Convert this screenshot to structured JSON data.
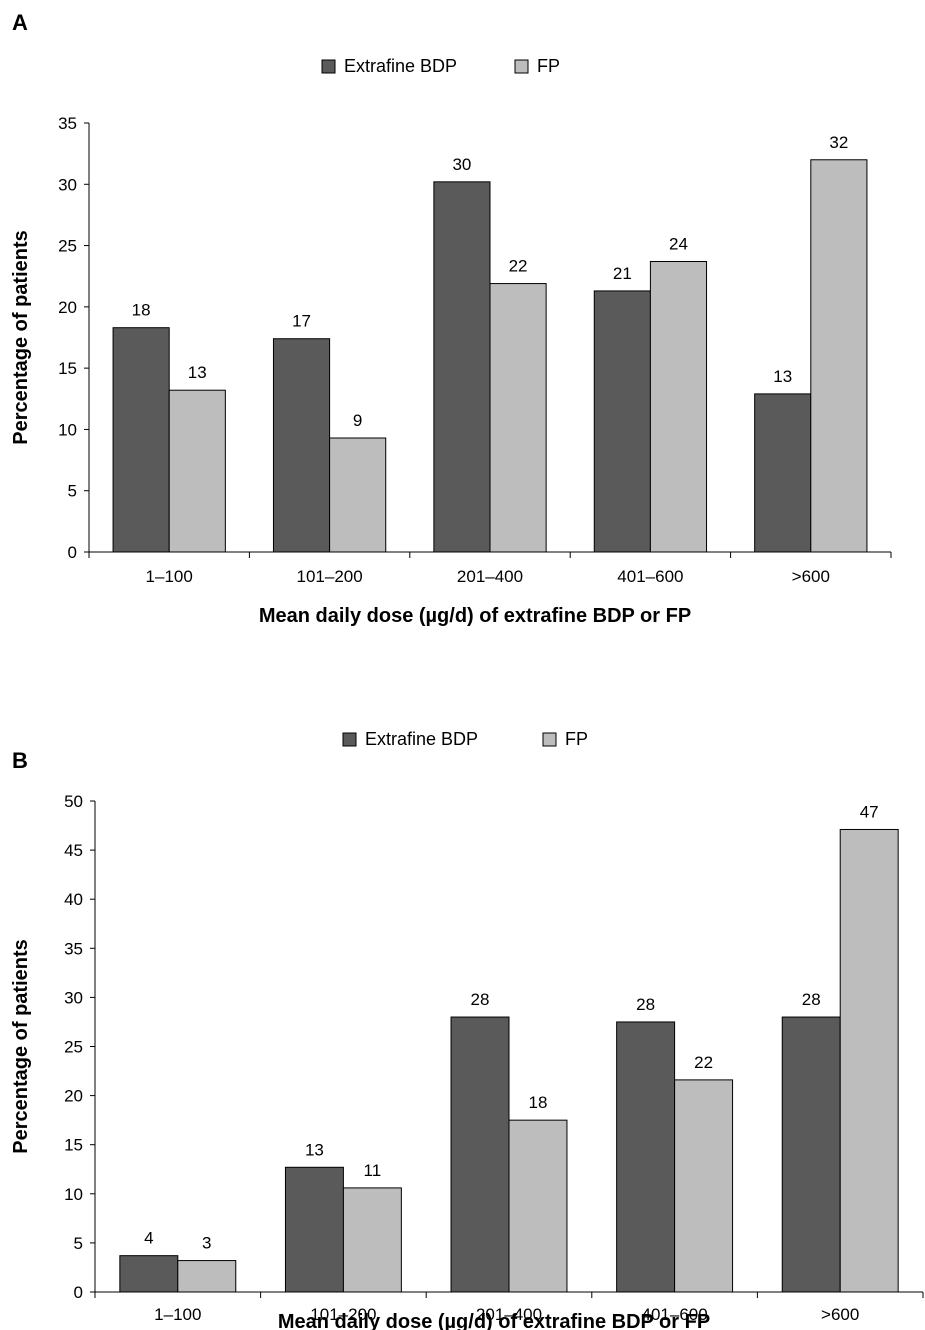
{
  "chart_data": [
    {
      "panel": "A",
      "type": "bar",
      "categories": [
        "1–100",
        "101–200",
        "201–400",
        "401–600",
        ">600"
      ],
      "series": [
        {
          "name": "Extrafine BDP",
          "values": [
            18.3,
            17.4,
            30.2,
            21.3,
            12.9
          ],
          "labels": [
            "18",
            "17",
            "30",
            "21",
            "13"
          ],
          "color": "#5a5a5a"
        },
        {
          "name": "FP",
          "values": [
            13.2,
            9.3,
            21.9,
            23.7,
            32.0
          ],
          "labels": [
            "13",
            "9",
            "22",
            "24",
            "32"
          ],
          "color": "#bdbdbd"
        }
      ],
      "xlabel": "Mean daily dose (µg/d) of extrafine BDP or FP",
      "ylabel": "Percentage of patients",
      "ylim": [
        0,
        35
      ],
      "yticks": [
        "0",
        "5",
        "10",
        "15",
        "20",
        "25",
        "30",
        "35"
      ],
      "grid": false,
      "legend": "top-center"
    },
    {
      "panel": "B",
      "type": "bar",
      "categories": [
        "1–100",
        "101–200",
        "201–400",
        "401–600",
        ">600"
      ],
      "series": [
        {
          "name": "Extrafine BDP",
          "values": [
            3.7,
            12.7,
            28.0,
            27.5,
            28.0
          ],
          "labels": [
            "4",
            "13",
            "28",
            "28",
            "28"
          ],
          "color": "#5a5a5a"
        },
        {
          "name": "FP",
          "values": [
            3.2,
            10.6,
            17.5,
            21.6,
            47.1
          ],
          "labels": [
            "3",
            "11",
            "18",
            "22",
            "47"
          ],
          "color": "#bdbdbd"
        }
      ],
      "xlabel": "Mean daily dose (µg/d) of extrafine BDP or FP",
      "ylabel": "Percentage of patients",
      "ylim": [
        0,
        50
      ],
      "yticks": [
        "0",
        "5",
        "10",
        "15",
        "20",
        "25",
        "30",
        "35",
        "40",
        "45",
        "50"
      ],
      "grid": false,
      "legend": "top-center"
    }
  ]
}
